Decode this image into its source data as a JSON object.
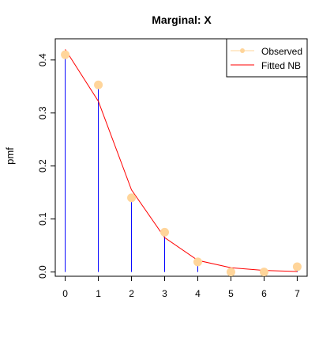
{
  "chart_data": {
    "type": "line",
    "title": "Marginal: X",
    "xlabel": "",
    "ylabel": "pmf",
    "xlim": [
      -0.3,
      7.3
    ],
    "ylim": [
      -0.008,
      0.44
    ],
    "x_ticks": [
      0,
      1,
      2,
      3,
      4,
      5,
      6,
      7
    ],
    "y_ticks": [
      0.0,
      0.1,
      0.2,
      0.3,
      0.4
    ],
    "y_tick_labels": [
      "0.0",
      "0.1",
      "0.2",
      "0.3",
      "0.4"
    ],
    "x": [
      0,
      1,
      2,
      3,
      4,
      5,
      6,
      7
    ],
    "series": [
      {
        "name": "Observed",
        "kind": "points",
        "color": "#FFD59A",
        "values": [
          0.41,
          0.353,
          0.14,
          0.075,
          0.019,
          0.0,
          0.0,
          0.01
        ]
      },
      {
        "name": "Fitted NB",
        "kind": "line",
        "color": "#FF0000",
        "values": [
          0.42,
          0.322,
          0.155,
          0.065,
          0.022,
          0.008,
          0.003,
          0.001
        ]
      }
    ],
    "spikes": {
      "color": "#0000FF",
      "values": [
        0.41,
        0.353,
        0.14,
        0.075,
        0.019,
        0.0,
        0.0,
        0.01
      ]
    },
    "legend": {
      "position": "top-right",
      "entries": [
        "Observed",
        "Fitted NB"
      ]
    },
    "grid": false
  }
}
